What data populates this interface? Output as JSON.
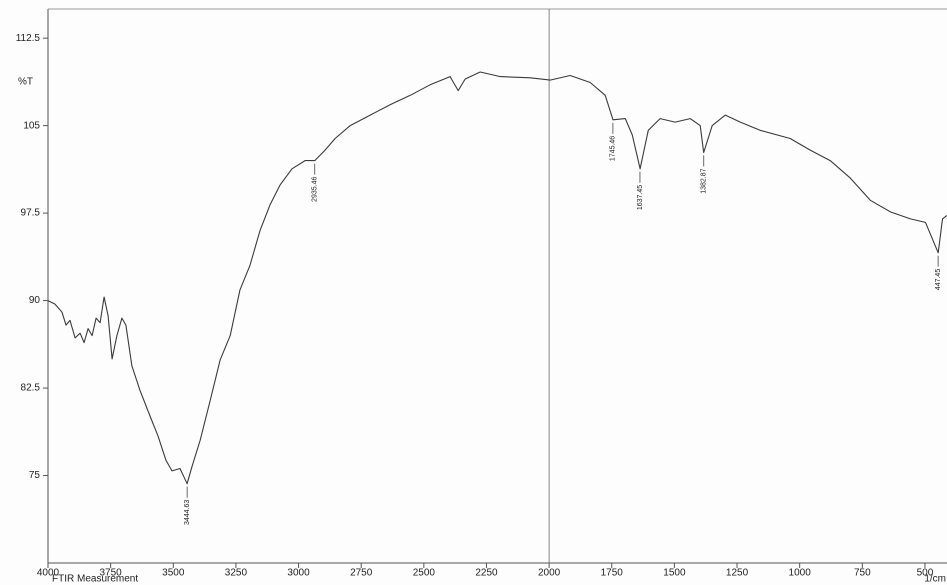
{
  "chart_data": {
    "type": "line",
    "footer": "FTIR Measurement",
    "xlabel": "1/cm",
    "ylabel": "%T",
    "x": [
      4000,
      3972,
      3944,
      3928,
      3912,
      3892,
      3872,
      3856,
      3840,
      3824,
      3808,
      3792,
      3776,
      3760,
      3744,
      3725,
      3705,
      3689,
      3665,
      3633,
      3593,
      3561,
      3529,
      3505,
      3473,
      3445,
      3425,
      3393,
      3353,
      3313,
      3273,
      3234,
      3194,
      3154,
      3114,
      3074,
      3026,
      2974,
      2935,
      2894,
      2854,
      2794,
      2714,
      2634,
      2554,
      2475,
      2395,
      2363,
      2335,
      2275,
      2195,
      2075,
      1996,
      1916,
      1836,
      1776,
      1745,
      1696,
      1668,
      1637,
      1604,
      1557,
      1497,
      1437,
      1397,
      1383,
      1349,
      1297,
      1237,
      1158,
      1038,
      958,
      878,
      798,
      718,
      638,
      558,
      498,
      447,
      430,
      412
    ],
    "series": [
      {
        "color": "#3a3a3a",
        "values": [
          90.0,
          89.7,
          89.0,
          87.9,
          88.3,
          86.8,
          87.2,
          86.4,
          87.6,
          87.0,
          88.5,
          88.1,
          90.3,
          88.7,
          85.0,
          87.0,
          88.5,
          87.9,
          84.4,
          82.3,
          80.1,
          78.4,
          76.3,
          75.4,
          75.6,
          74.3,
          75.8,
          78.0,
          81.4,
          84.9,
          87.0,
          90.9,
          93.0,
          96.0,
          98.2,
          99.9,
          101.3,
          102.0,
          102.0,
          102.9,
          103.9,
          105.0,
          105.9,
          106.8,
          107.6,
          108.5,
          109.2,
          108.0,
          109.0,
          109.6,
          109.2,
          109.1,
          108.9,
          109.3,
          108.7,
          107.6,
          105.5,
          105.6,
          104.2,
          101.3,
          104.6,
          105.6,
          105.3,
          105.6,
          105.0,
          102.7,
          105.0,
          105.9,
          105.3,
          104.6,
          103.9,
          102.9,
          102.0,
          100.5,
          98.6,
          97.6,
          97.0,
          96.7,
          94.1,
          97.0,
          97.3
        ]
      }
    ],
    "xlim": [
      4000,
      412
    ],
    "ylim": [
      67.5,
      115
    ],
    "xticks": [
      4000,
      3750,
      3500,
      3250,
      3000,
      2750,
      2500,
      2250,
      2000,
      1750,
      1500,
      1250,
      1000,
      750,
      500
    ],
    "yticks": [
      112.5,
      105,
      97.5,
      90,
      82.5,
      75
    ],
    "vlines": [
      2000
    ],
    "peaks": [
      {
        "x": 3444.63,
        "y": 74.3
      },
      {
        "x": 2935.46,
        "y": 102.0
      },
      {
        "x": 1745.46,
        "y": 105.5
      },
      {
        "x": 1637.45,
        "y": 101.3
      },
      {
        "x": 1382.87,
        "y": 102.7
      },
      {
        "x": 447.45,
        "y": 94.1
      }
    ],
    "grid": false
  }
}
